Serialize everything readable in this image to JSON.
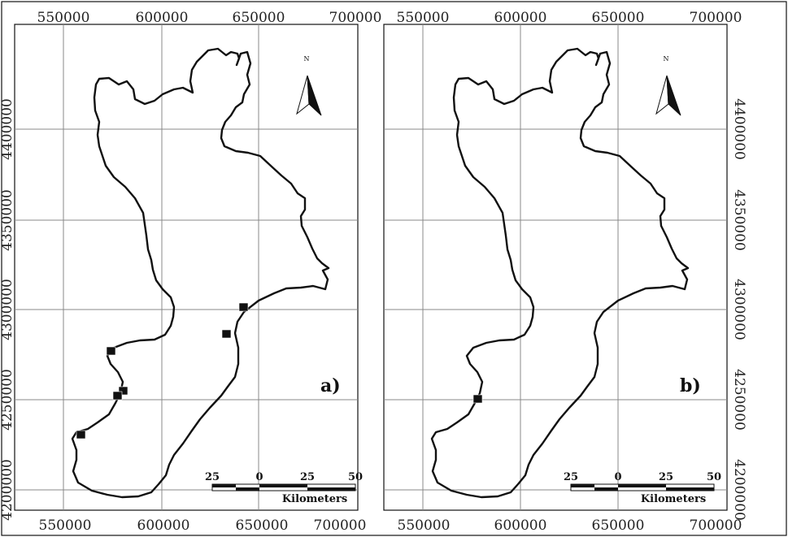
{
  "x_ticks": [
    "550000",
    "600000",
    "650000",
    "700000"
  ],
  "y_ticks": [
    "4200000",
    "4250000",
    "4300000",
    "4350000",
    "4400000"
  ],
  "north_label": "N",
  "panels": [
    {
      "id": "a",
      "label": "a)",
      "stations": 7
    },
    {
      "id": "b",
      "label": "b)",
      "stations": 1
    }
  ],
  "scale_bar": {
    "labels": [
      "25",
      "0",
      "25",
      "50"
    ],
    "unit": "Kilometers"
  },
  "colors": {
    "line": "#111111",
    "grid": "#888888",
    "background": "#ffffff"
  }
}
